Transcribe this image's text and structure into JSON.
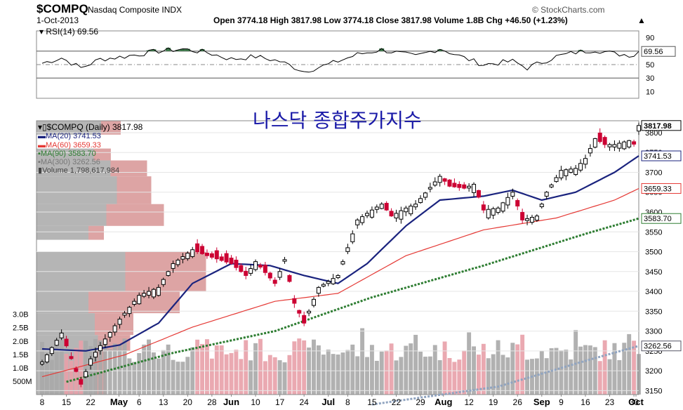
{
  "header": {
    "symbol": "$COMPQ",
    "name": "Nasdaq Composite INDX",
    "date": "1-Oct-2013",
    "watermark": "© StockCharts.com",
    "quote": "Open 3774.18  High 3817.98  Low 3774.18  Close 3817.98  Volume 1.8B  Chg +46.50 (+1.23%)",
    "quote_arrow": "▲"
  },
  "overlay_title": "나스닥 종합주가지수",
  "legend": {
    "price": "$COMPQ (Daily) 3817.98",
    "ma20": "MA(20) 3741.53",
    "ma60": "MA(60) 3659.33",
    "ma90": "MA(90) 3583.70",
    "ma300": "MA(300) 3262.56",
    "volume": "Volume 1,798,617,984"
  },
  "rsi": {
    "label": "RSI(14) 69.56",
    "value_tag": "69.56"
  },
  "tags": {
    "close": "3817.98",
    "ma20": "3741.53",
    "ma60": "3659.33",
    "ma90": "3583.70",
    "ma300": "3262.56"
  },
  "colors": {
    "ma20": "#1a237e",
    "ma60": "#e53935",
    "ma90": "#2e7d32",
    "ma300": "#90a4c0",
    "up": "#000000",
    "down": "#cc0033",
    "volume_up": "#a8a8a8",
    "volume_down": "#e8a0a8",
    "vbp": "#a8a8a8",
    "vbp_red": "#d99a9a",
    "rsi_fill": "#3c7a4a",
    "title_blue": "#1a1aa8"
  },
  "chart_data": {
    "type": "candlestick",
    "price_axis": {
      "ylim": [
        3140,
        3830
      ],
      "ticks": [
        "3150",
        "3200",
        "3250",
        "3300",
        "3350",
        "3400",
        "3450",
        "3500",
        "3550",
        "3600",
        "3650",
        "3700",
        "3750",
        "3800"
      ]
    },
    "rsi_axis": {
      "ylim": [
        0,
        100
      ],
      "ticks": [
        "10",
        "30",
        "50",
        "70",
        "90"
      ]
    },
    "volume_axis": {
      "ticks": [
        "500M",
        "1.0B",
        "1.5B",
        "2.0B",
        "2.5B",
        "3.0B"
      ]
    },
    "x_axis_labels": [
      "8",
      "15",
      "22",
      "May",
      "6",
      "13",
      "20",
      "28",
      "Jun",
      "10",
      "17",
      "24",
      "Jul",
      "8",
      "15",
      "22",
      "29",
      "Aug",
      "12",
      "19",
      "26",
      "Sep",
      "9",
      "16",
      "23",
      "30",
      "Oct"
    ],
    "months": [
      "May",
      "Jun",
      "Jul",
      "Aug",
      "Sep",
      "Oct"
    ],
    "start_date": "2013-04-08",
    "end_date": "2013-10-01",
    "close_checkpoints": [
      [
        "Apr 8",
        3222
      ],
      [
        "Apr 12",
        3295
      ],
      [
        "Apr 18",
        3166
      ],
      [
        "Apr 22",
        3230
      ],
      [
        "Apr 30",
        3330
      ],
      [
        "May 6",
        3390
      ],
      [
        "May 10",
        3410
      ],
      [
        "May 15",
        3470
      ],
      [
        "May 21",
        3505
      ],
      [
        "May 24",
        3490
      ],
      [
        "Jun 3",
        3470
      ],
      [
        "Jun 6",
        3440
      ],
      [
        "Jun 10",
        3475
      ],
      [
        "Jun 14",
        3420
      ],
      [
        "Jun 18",
        3480
      ],
      [
        "Jun 20",
        3370
      ],
      [
        "Jun 24",
        3320
      ],
      [
        "Jun 27",
        3410
      ],
      [
        "Jul 3",
        3440
      ],
      [
        "Jul 10",
        3580
      ],
      [
        "Jul 15",
        3605
      ],
      [
        "Jul 17",
        3620
      ],
      [
        "Jul 19",
        3590
      ],
      [
        "Jul 24",
        3610
      ],
      [
        "Jul 26",
        3620
      ],
      [
        "Aug 2",
        3690
      ],
      [
        "Aug 6",
        3665
      ],
      [
        "Aug 9",
        3660
      ],
      [
        "Aug 13",
        3670
      ],
      [
        "Aug 15",
        3605
      ],
      [
        "Aug 20",
        3610
      ],
      [
        "Aug 23",
        3650
      ],
      [
        "Aug 27",
        3580
      ],
      [
        "Aug 30",
        3590
      ],
      [
        "Sep 4",
        3650
      ],
      [
        "Sep 9",
        3705
      ],
      [
        "Sep 12",
        3710
      ],
      [
        "Sep 16",
        3735
      ],
      [
        "Sep 18",
        3785
      ],
      [
        "Sep 20",
        3770
      ],
      [
        "Sep 24",
        3770
      ],
      [
        "Sep 27",
        3780
      ],
      [
        "Sep 30",
        3771
      ],
      [
        "Oct 1",
        3817.98
      ]
    ],
    "ma20_checkpoints": [
      [
        "Apr 8",
        3255
      ],
      [
        "Apr 19",
        3250
      ],
      [
        "Apr 30",
        3265
      ],
      [
        "May 10",
        3320
      ],
      [
        "May 21",
        3420
      ],
      [
        "Jun 3",
        3470
      ],
      [
        "Jun 13",
        3465
      ],
      [
        "Jun 24",
        3440
      ],
      [
        "Jul 3",
        3420
      ],
      [
        "Jul 12",
        3470
      ],
      [
        "Jul 24",
        3565
      ],
      [
        "Aug 2",
        3630
      ],
      [
        "Aug 15",
        3640
      ],
      [
        "Aug 23",
        3655
      ],
      [
        "Sep 3",
        3630
      ],
      [
        "Sep 12",
        3650
      ],
      [
        "Sep 24",
        3700
      ],
      [
        "Oct 1",
        3741.53
      ]
    ],
    "ma60_checkpoints": [
      [
        "Apr 8",
        3185
      ],
      [
        "May 1",
        3240
      ],
      [
        "May 21",
        3310
      ],
      [
        "Jun 14",
        3375
      ],
      [
        "Jul 3",
        3395
      ],
      [
        "Jul 24",
        3490
      ],
      [
        "Aug 15",
        3555
      ],
      [
        "Sep 6",
        3585
      ],
      [
        "Sep 24",
        3630
      ],
      [
        "Oct 1",
        3659.33
      ]
    ],
    "ma90_checkpoints": [
      [
        "Apr 15",
        3172
      ],
      [
        "May 15",
        3245
      ],
      [
        "Jun 14",
        3300
      ],
      [
        "Jul 15",
        3385
      ],
      [
        "Aug 15",
        3465
      ],
      [
        "Sep 16",
        3545
      ],
      [
        "Oct 1",
        3583.7
      ]
    ],
    "ma300_checkpoints": [
      [
        "Jul 15",
        3115
      ],
      [
        "Aug 20",
        3160
      ],
      [
        "Sep 15",
        3225
      ],
      [
        "Oct 1",
        3262.56
      ]
    ],
    "rsi_checkpoints": [
      [
        "Apr 8",
        52
      ],
      [
        "Apr 12",
        60
      ],
      [
        "Apr 18",
        45
      ],
      [
        "Apr 24",
        58
      ],
      [
        "May 1",
        62
      ],
      [
        "May 10",
        70
      ],
      [
        "May 17",
        73
      ],
      [
        "May 24",
        68
      ],
      [
        "Jun 3",
        58
      ],
      [
        "Jun 10",
        62
      ],
      [
        "Jun 17",
        55
      ],
      [
        "Jun 24",
        40
      ],
      [
        "Jul 1",
        50
      ],
      [
        "Jul 10",
        65
      ],
      [
        "Jul 17",
        72
      ],
      [
        "Jul 26",
        62
      ],
      [
        "Aug 2",
        74
      ],
      [
        "Aug 9",
        60
      ],
      [
        "Aug 15",
        50
      ],
      [
        "Aug 23",
        55
      ],
      [
        "Aug 28",
        45
      ],
      [
        "Sep 6",
        62
      ],
      [
        "Sep 12",
        68
      ],
      [
        "Sep 18",
        72
      ],
      [
        "Sep 24",
        66
      ],
      [
        "Sep 30",
        64
      ],
      [
        "Oct 1",
        69.56
      ]
    ]
  }
}
